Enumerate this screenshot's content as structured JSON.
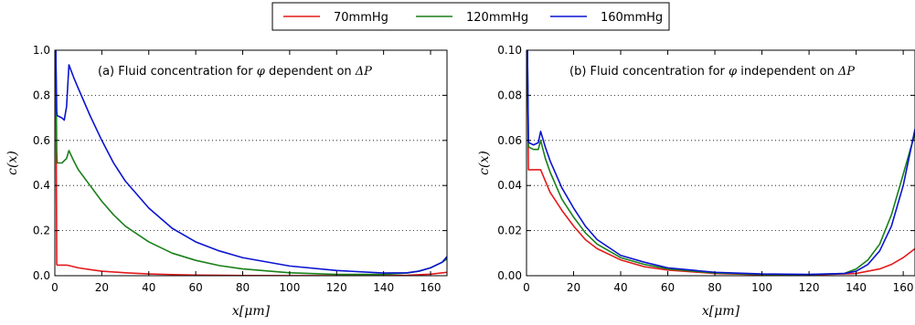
{
  "legend": {
    "entries": [
      {
        "label": "70mmHg",
        "color": "#e31a1c"
      },
      {
        "label": "120mmHg",
        "color": "#1a7f1a"
      },
      {
        "label": "160mmHg",
        "color": "#0a14d0"
      }
    ]
  },
  "chart_data": [
    {
      "type": "line",
      "annotation_prefix": "(a) Fluid concentration for ",
      "annotation_phi": "φ",
      "annotation_middle": " dependent on ",
      "annotation_dp": "ΔP",
      "xlabel": "x[μm]",
      "ylabel": "c(x)",
      "xlim": [
        0,
        167
      ],
      "ylim": [
        0,
        1.0
      ],
      "xticks": [
        0,
        20,
        40,
        60,
        80,
        100,
        120,
        140,
        160
      ],
      "yticks": [
        0.0,
        0.2,
        0.4,
        0.6,
        0.8,
        1.0
      ],
      "ytick_labels": [
        "0.0",
        "0.2",
        "0.4",
        "0.6",
        "0.8",
        "1.0"
      ],
      "grid": "horizontal dotted",
      "series": [
        {
          "name": "70mmHg",
          "color": "#e31a1c",
          "x": [
            0,
            0.4,
            0.8,
            1,
            3,
            5,
            6,
            8,
            10,
            15,
            20,
            30,
            40,
            50,
            60,
            80,
            100,
            120,
            140,
            150,
            160,
            167
          ],
          "y": [
            1.0,
            1.0,
            0.05,
            0.047,
            0.047,
            0.047,
            0.045,
            0.04,
            0.035,
            0.027,
            0.02,
            0.013,
            0.008,
            0.005,
            0.003,
            0.001,
            0.0005,
            0.0003,
            0.0005,
            0.002,
            0.007,
            0.015
          ]
        },
        {
          "name": "120mmHg",
          "color": "#1a7f1a",
          "x": [
            0,
            0.4,
            0.8,
            1,
            3,
            5,
            6,
            8,
            10,
            15,
            20,
            25,
            30,
            40,
            50,
            60,
            70,
            80,
            100,
            120,
            140,
            150,
            155,
            160,
            165,
            167
          ],
          "y": [
            1.0,
            1.0,
            0.55,
            0.5,
            0.5,
            0.52,
            0.555,
            0.51,
            0.47,
            0.4,
            0.33,
            0.27,
            0.22,
            0.15,
            0.1,
            0.068,
            0.045,
            0.03,
            0.013,
            0.006,
            0.006,
            0.012,
            0.02,
            0.035,
            0.06,
            0.075
          ]
        },
        {
          "name": "160mmHg",
          "color": "#0a14d0",
          "x": [
            0,
            0.4,
            0.8,
            1,
            3,
            4,
            5,
            6,
            8,
            10,
            15,
            20,
            25,
            30,
            40,
            50,
            60,
            70,
            80,
            100,
            120,
            140,
            150,
            155,
            160,
            165,
            167
          ],
          "y": [
            1.0,
            1.0,
            0.73,
            0.71,
            0.7,
            0.69,
            0.75,
            0.935,
            0.88,
            0.83,
            0.71,
            0.6,
            0.5,
            0.42,
            0.3,
            0.21,
            0.15,
            0.11,
            0.08,
            0.043,
            0.023,
            0.012,
            0.013,
            0.02,
            0.035,
            0.06,
            0.085
          ]
        }
      ]
    },
    {
      "type": "line",
      "annotation_prefix": "(b) Fluid concentration for ",
      "annotation_phi": "φ",
      "annotation_middle": " independent on ",
      "annotation_dp": "ΔP",
      "xlabel": "x[μm]",
      "ylabel": "c(x)",
      "xlim": [
        0,
        165
      ],
      "ylim": [
        0,
        0.1
      ],
      "xticks": [
        0,
        20,
        40,
        60,
        80,
        100,
        120,
        140,
        160
      ],
      "yticks": [
        0.0,
        0.02,
        0.04,
        0.06,
        0.08,
        0.1
      ],
      "ytick_labels": [
        "0.00",
        "0.02",
        "0.04",
        "0.06",
        "0.08",
        "0.10"
      ],
      "grid": "horizontal dotted",
      "series": [
        {
          "name": "70mmHg",
          "color": "#e31a1c",
          "x": [
            0,
            0.4,
            0.8,
            1,
            3,
            5,
            6,
            8,
            10,
            15,
            20,
            25,
            30,
            40,
            50,
            60,
            80,
            100,
            120,
            140,
            150,
            155,
            160,
            165
          ],
          "y": [
            0.1,
            0.1,
            0.047,
            0.047,
            0.047,
            0.047,
            0.047,
            0.042,
            0.037,
            0.029,
            0.022,
            0.016,
            0.012,
            0.007,
            0.004,
            0.0025,
            0.001,
            0.0004,
            0.0003,
            0.001,
            0.003,
            0.005,
            0.008,
            0.012
          ]
        },
        {
          "name": "120mmHg",
          "color": "#1a7f1a",
          "x": [
            0,
            0.4,
            0.8,
            1,
            3,
            5,
            6,
            8,
            10,
            15,
            20,
            25,
            30,
            40,
            50,
            60,
            80,
            100,
            120,
            135,
            140,
            145,
            150,
            155,
            160,
            163,
            165
          ],
          "y": [
            0.1,
            0.1,
            0.058,
            0.057,
            0.056,
            0.056,
            0.06,
            0.052,
            0.046,
            0.034,
            0.026,
            0.019,
            0.014,
            0.008,
            0.005,
            0.003,
            0.0012,
            0.0006,
            0.0005,
            0.001,
            0.003,
            0.007,
            0.014,
            0.027,
            0.045,
            0.056,
            0.063
          ]
        },
        {
          "name": "160mmHg",
          "color": "#0a14d0",
          "x": [
            0,
            0.4,
            0.8,
            1,
            3,
            5,
            6,
            8,
            10,
            15,
            20,
            25,
            30,
            40,
            50,
            60,
            80,
            100,
            120,
            135,
            140,
            145,
            150,
            155,
            160,
            163,
            165
          ],
          "y": [
            0.1,
            0.1,
            0.06,
            0.059,
            0.058,
            0.059,
            0.064,
            0.057,
            0.051,
            0.039,
            0.03,
            0.022,
            0.016,
            0.009,
            0.006,
            0.0035,
            0.0015,
            0.0008,
            0.0006,
            0.001,
            0.002,
            0.005,
            0.011,
            0.022,
            0.04,
            0.055,
            0.065
          ]
        }
      ]
    }
  ]
}
